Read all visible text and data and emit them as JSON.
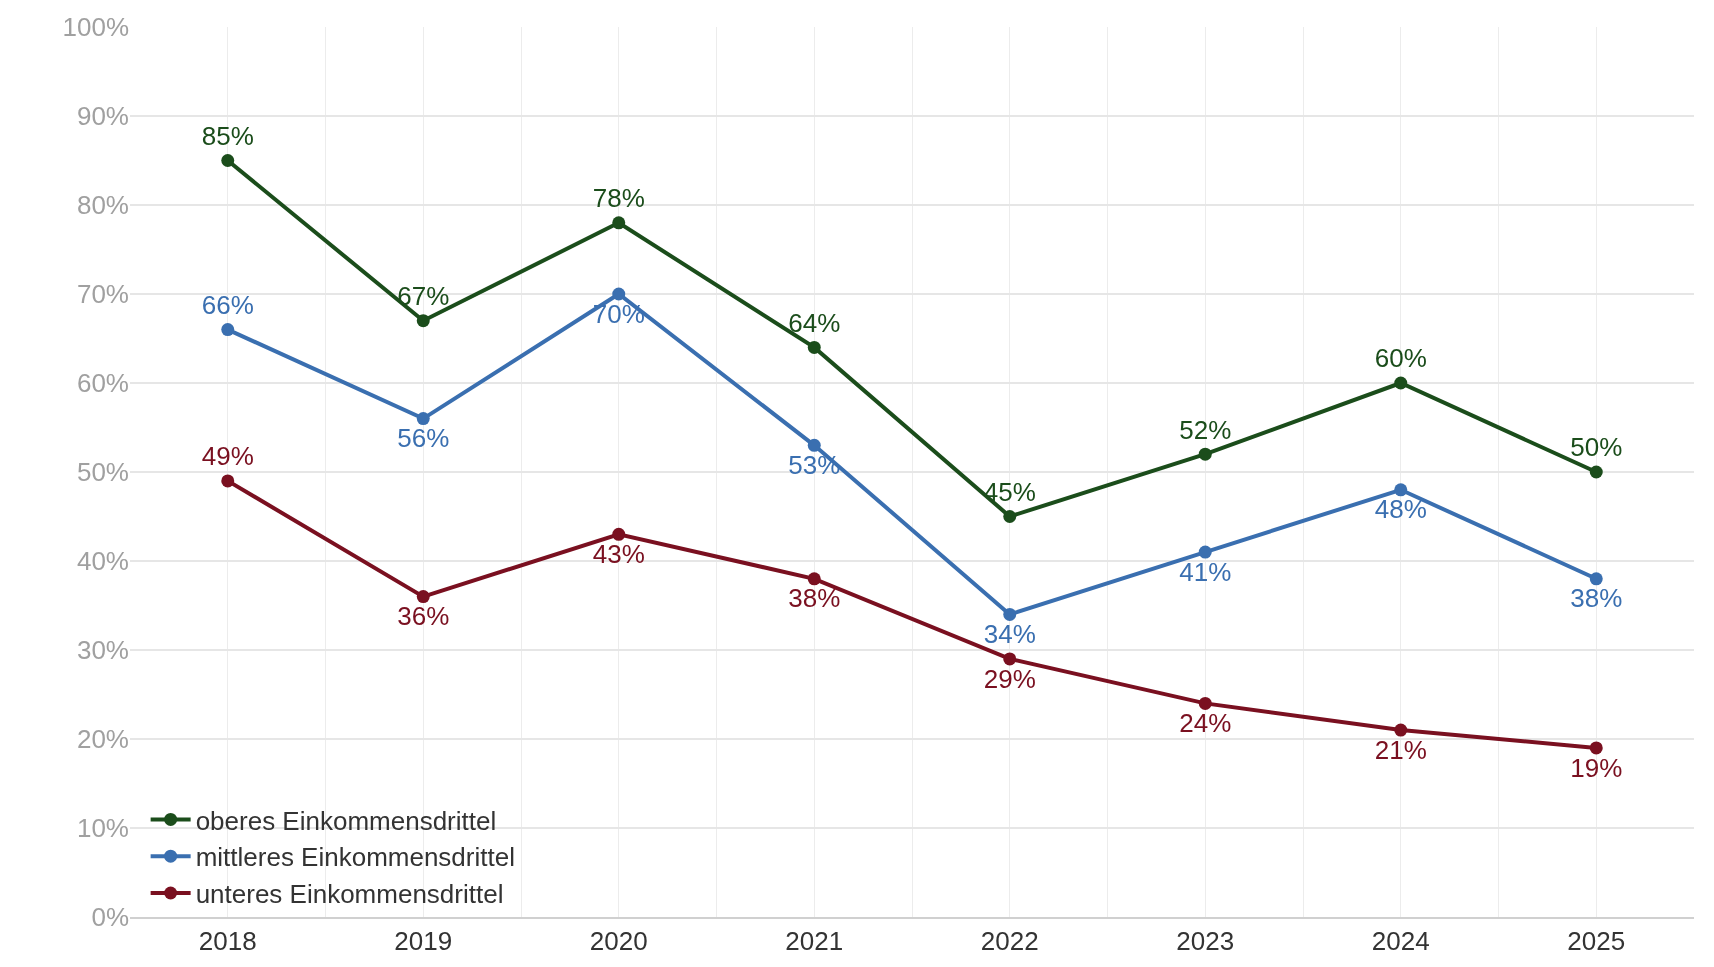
{
  "chart_data": {
    "type": "line",
    "categories": [
      "2018",
      "2019",
      "2020",
      "2021",
      "2022",
      "2023",
      "2024",
      "2025"
    ],
    "series": [
      {
        "name": "oberes Einkommensdrittel",
        "color": "#1b4d1b",
        "values": [
          85,
          67,
          78,
          64,
          45,
          52,
          60,
          50
        ],
        "value_labels": [
          "85%",
          "67%",
          "78%",
          "64%",
          "45%",
          "52%",
          "60%",
          "50%"
        ]
      },
      {
        "name": "mittleres Einkommensdrittel",
        "color": "#3a6fb0",
        "values": [
          66,
          56,
          70,
          53,
          34,
          41,
          48,
          38
        ],
        "value_labels": [
          "66%",
          "56%",
          "70%",
          "53%",
          "34%",
          "41%",
          "48%",
          "38%"
        ]
      },
      {
        "name": "unteres Einkommensdrittel",
        "color": "#7a1020",
        "values": [
          49,
          36,
          43,
          38,
          29,
          24,
          21,
          19
        ],
        "value_labels": [
          "49%",
          "36%",
          "43%",
          "38%",
          "29%",
          "24%",
          "21%",
          "19%"
        ]
      }
    ],
    "ylim": [
      0,
      100
    ],
    "yticks": [
      {
        "value": 0,
        "label": "0%"
      },
      {
        "value": 10,
        "label": "10%"
      },
      {
        "value": 20,
        "label": "20%"
      },
      {
        "value": 30,
        "label": "30%"
      },
      {
        "value": 40,
        "label": "40%"
      },
      {
        "value": 50,
        "label": "50%"
      },
      {
        "value": 60,
        "label": "60%"
      },
      {
        "value": 70,
        "label": "70%"
      },
      {
        "value": 80,
        "label": "80%"
      },
      {
        "value": 90,
        "label": "90%"
      },
      {
        "value": 100,
        "label": "100%"
      }
    ],
    "grid": true,
    "legend": "bottom left",
    "marker": "circle",
    "line_style": "solid"
  }
}
